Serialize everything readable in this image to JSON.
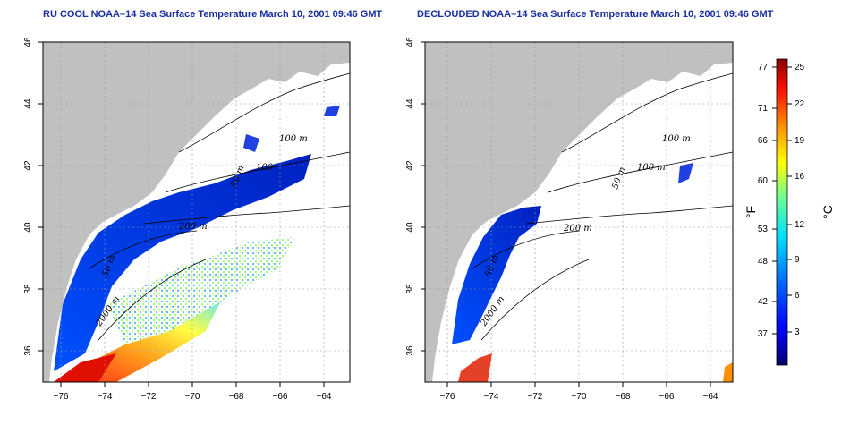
{
  "panels": [
    {
      "title": "RU COOL NOAA–14 Sea Surface Temperature March 10, 2001 09:46 GMT",
      "contour_labels": [
        "100 m",
        "100",
        "50 m",
        "200 m",
        "50 m",
        "2000 m"
      ]
    },
    {
      "title": "DECLOUDED NOAA–14 Sea Surface Temperature March 10, 2001 09:46 GMT",
      "contour_labels": [
        "100 m",
        "100 m",
        "50 m",
        "200 m",
        "50 m",
        "2000 m"
      ]
    }
  ],
  "axes": {
    "x_ticks": [
      "−76",
      "−74",
      "−72",
      "−70",
      "−68",
      "−66",
      "−64"
    ],
    "y_ticks": [
      "36",
      "38",
      "40",
      "42",
      "44",
      "46"
    ]
  },
  "colorbar": {
    "fahrenheit_unit": "°F",
    "celsius_unit": "°C",
    "fahrenheit_ticks": [
      "77",
      "71",
      "66",
      "60",
      "53",
      "48",
      "42",
      "37"
    ],
    "celsius_ticks": [
      "25",
      "22",
      "19",
      "16",
      "12",
      "9",
      "6",
      "3"
    ],
    "colors": [
      "#00008b",
      "#0000ff",
      "#0080ff",
      "#00ffff",
      "#80ff80",
      "#ffff00",
      "#ff8000",
      "#ff0000",
      "#8b0000"
    ]
  },
  "colors": {
    "land": "#c0c0c0",
    "cold_water": "#1040e0",
    "title": "#1a2fa0"
  }
}
